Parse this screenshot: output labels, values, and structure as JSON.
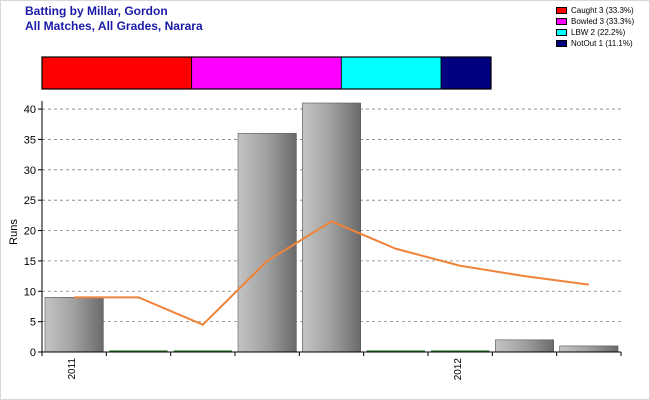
{
  "title_line1": "Batting by Millar, Gordon",
  "title_line2": "All Matches, All Grades, Narara",
  "legend": [
    {
      "label": "Caught 3 (33.3%)",
      "color": "#ff0000"
    },
    {
      "label": "Bowled 3 (33.3%)",
      "color": "#ff00ff"
    },
    {
      "label": "LBW 2 (22.2%)",
      "color": "#00ffff"
    },
    {
      "label": "NotOut 1 (11.1%)",
      "color": "#000080"
    }
  ],
  "chart_data": {
    "type": "bar",
    "ylabel": "Runs",
    "ylim": [
      0,
      41
    ],
    "yticks": [
      0,
      5,
      10,
      15,
      20,
      25,
      30,
      35,
      40
    ],
    "x_tick_labels": [
      {
        "label": "2011",
        "at_innings": 1
      },
      {
        "label": "2012",
        "at_innings": 7
      }
    ],
    "series": [
      {
        "type": "bar",
        "values": [
          9,
          0,
          0,
          36,
          41,
          0,
          0,
          2,
          1
        ]
      },
      {
        "type": "line",
        "color": "#f0833a",
        "values": [
          9,
          9,
          4.5,
          15,
          21.5,
          17,
          14.2,
          12.5,
          11.1
        ]
      }
    ],
    "dismissals": {
      "type": "stacked-bar",
      "segments": [
        {
          "label": "Caught",
          "value": 3,
          "color": "#ff0000"
        },
        {
          "label": "Bowled",
          "value": 3,
          "color": "#ff00ff"
        },
        {
          "label": "LBW",
          "value": 2,
          "color": "#00ffff"
        },
        {
          "label": "NotOut",
          "value": 1,
          "color": "#000080"
        }
      ]
    },
    "grid": true
  }
}
